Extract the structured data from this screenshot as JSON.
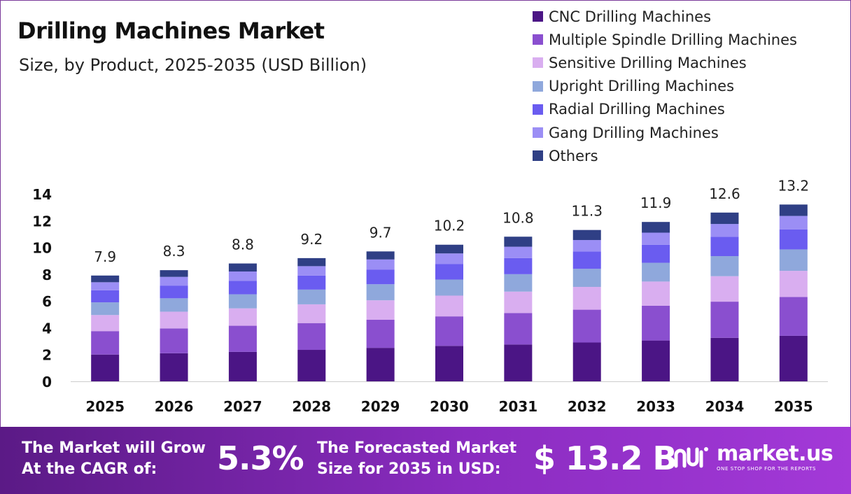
{
  "header": {
    "title": "Drilling Machines Market",
    "subtitle": "Size, by Product, 2025-2035 (USD Billion)"
  },
  "legend": [
    {
      "label": "CNC Drilling Machines",
      "color": "#4b1585"
    },
    {
      "label": "Multiple Spindle Drilling Machines",
      "color": "#8a4fcf"
    },
    {
      "label": "Sensitive Drilling Machines",
      "color": "#d9aef0"
    },
    {
      "label": "Upright Drilling Machines",
      "color": "#8fa8dc"
    },
    {
      "label": "Radial Drilling Machines",
      "color": "#6a5cf0"
    },
    {
      "label": "Gang Drilling Machines",
      "color": "#9b8ef5"
    },
    {
      "label": "Others",
      "color": "#2f3f85"
    }
  ],
  "chart_data": {
    "type": "bar",
    "stacked": true,
    "title": "Drilling Machines Market",
    "subtitle": "Size, by Product, 2025-2035 (USD Billion)",
    "xlabel": "",
    "ylabel": "",
    "ylim": [
      0,
      14
    ],
    "yticks": [
      0,
      2,
      4,
      6,
      8,
      10,
      12,
      14
    ],
    "categories": [
      "2025",
      "2026",
      "2027",
      "2028",
      "2029",
      "2030",
      "2031",
      "2032",
      "2033",
      "2034",
      "2035"
    ],
    "totals": [
      "7.9",
      "8.3",
      "8.8",
      "9.2",
      "9.7",
      "10.2",
      "10.8",
      "11.3",
      "11.9",
      "12.6",
      "13.2"
    ],
    "series": [
      {
        "name": "CNC Drilling Machines",
        "color": "#4b1585",
        "values": [
          2.0,
          2.1,
          2.2,
          2.35,
          2.5,
          2.65,
          2.75,
          2.9,
          3.05,
          3.25,
          3.4
        ]
      },
      {
        "name": "Multiple Spindle Drilling Machines",
        "color": "#8a4fcf",
        "values": [
          1.75,
          1.85,
          1.95,
          2.0,
          2.1,
          2.2,
          2.35,
          2.45,
          2.6,
          2.7,
          2.9
        ]
      },
      {
        "name": "Sensitive Drilling Machines",
        "color": "#d9aef0",
        "values": [
          1.2,
          1.25,
          1.3,
          1.4,
          1.45,
          1.55,
          1.6,
          1.7,
          1.8,
          1.9,
          1.95
        ]
      },
      {
        "name": "Upright Drilling Machines",
        "color": "#8fa8dc",
        "values": [
          0.95,
          1.0,
          1.05,
          1.1,
          1.2,
          1.2,
          1.3,
          1.35,
          1.4,
          1.5,
          1.6
        ]
      },
      {
        "name": "Radial Drilling Machines",
        "color": "#6a5cf0",
        "values": [
          0.9,
          0.95,
          1.0,
          1.05,
          1.1,
          1.15,
          1.2,
          1.3,
          1.35,
          1.45,
          1.5
        ]
      },
      {
        "name": "Gang Drilling Machines",
        "color": "#9b8ef5",
        "values": [
          0.6,
          0.65,
          0.7,
          0.7,
          0.75,
          0.8,
          0.85,
          0.85,
          0.9,
          0.95,
          1.0
        ]
      },
      {
        "name": "Others",
        "color": "#2f3f85",
        "values": [
          0.5,
          0.5,
          0.6,
          0.6,
          0.6,
          0.65,
          0.75,
          0.75,
          0.8,
          0.85,
          0.85
        ]
      }
    ]
  },
  "banner": {
    "cagr_text_line1": "The Market will Grow",
    "cagr_text_line2": "At the CAGR of:",
    "cagr_value": "5.3%",
    "forecast_text_line1": "The Forecasted Market",
    "forecast_text_line2": "Size for 2035 in USD:",
    "forecast_value": "$ 13.2 B",
    "brand_name": "market.us",
    "brand_tagline": "ONE STOP SHOP FOR THE REPORTS"
  },
  "colors": {
    "banner_start": "#5b1a86",
    "banner_end": "#a339d8",
    "axis": "#cccccc",
    "text": "#222222"
  }
}
